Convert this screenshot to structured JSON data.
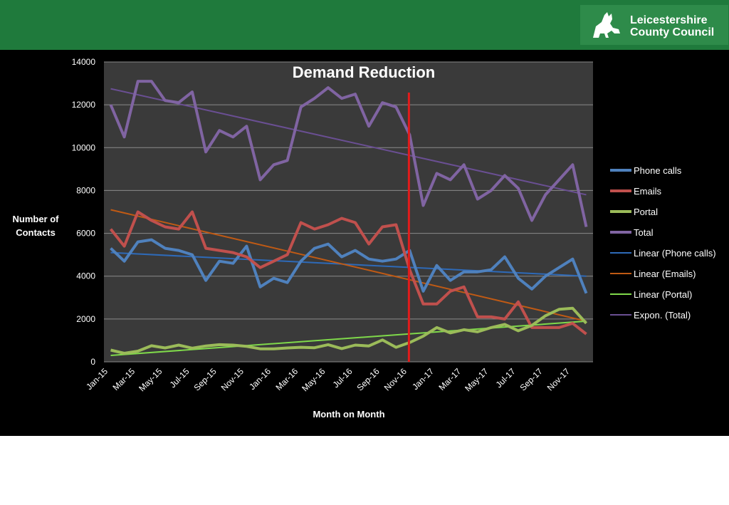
{
  "header": {
    "org_line1": "Leicestershire",
    "org_line2": "County Council",
    "logo_icon": "fox-logo-icon",
    "colors": {
      "bar": "#1f7a3c",
      "logo_bg": "#2e8b4a"
    }
  },
  "chart_data": {
    "type": "line",
    "title": "Demand Reduction",
    "xlabel": "Month on Month",
    "ylabel_lines": [
      "Number of",
      "Contacts"
    ],
    "ylim": [
      0,
      14000
    ],
    "yticks": [
      0,
      2000,
      4000,
      6000,
      8000,
      10000,
      12000,
      14000
    ],
    "ytick_labels": [
      "0",
      "2000",
      "4000",
      "6000",
      "8000",
      "10000",
      "12000",
      "14000"
    ],
    "grid": true,
    "legend_position": "right",
    "categories": [
      "Jan-15",
      "Feb-15",
      "Mar-15",
      "Apr-15",
      "May-15",
      "Jun-15",
      "Jul-15",
      "Aug-15",
      "Sep-15",
      "Oct-15",
      "Nov-15",
      "Dec-15",
      "Jan-16",
      "Feb-16",
      "Mar-16",
      "Apr-16",
      "May-16",
      "Jun-16",
      "Jul-16",
      "Aug-16",
      "Sep-16",
      "Oct-16",
      "Nov-16",
      "Dec-16",
      "Jan-17",
      "Feb-17",
      "Mar-17",
      "Apr-17",
      "May-17",
      "Jun-17",
      "Jul-17",
      "Aug-17",
      "Sep-17",
      "Oct-17",
      "Nov-17",
      "Dec-17"
    ],
    "xtick_labels": [
      "Jan-15",
      "Mar-15",
      "May-15",
      "Jul-15",
      "Sep-15",
      "Nov-15",
      "Jan-16",
      "Mar-16",
      "May-16",
      "Jul-16",
      "Sep-16",
      "Nov-16",
      "Jan-17",
      "Mar-17",
      "May-17",
      "Jul-17",
      "Sep-17",
      "Nov-17"
    ],
    "series": [
      {
        "name": "Phone calls",
        "color": "#4f81bd",
        "values": [
          5300,
          4700,
          5600,
          5700,
          5300,
          5200,
          5000,
          3800,
          4700,
          4600,
          5400,
          3500,
          3900,
          3700,
          4700,
          5300,
          5500,
          4900,
          5200,
          4800,
          4700,
          4800,
          5200,
          3300,
          4500,
          3800,
          4200,
          4200,
          4300,
          4900,
          3900,
          3400,
          4000,
          4400,
          4800,
          3200
        ]
      },
      {
        "name": "Emails",
        "color": "#c0504d",
        "values": [
          6200,
          5400,
          7000,
          6600,
          6300,
          6200,
          7000,
          5300,
          5200,
          5100,
          4900,
          4400,
          4700,
          5000,
          6500,
          6200,
          6400,
          6700,
          6500,
          5500,
          6300,
          6400,
          4300,
          2700,
          2700,
          3300,
          3500,
          2100,
          2100,
          2000,
          2800,
          1600,
          1600,
          1600,
          1800,
          1300
        ]
      },
      {
        "name": "Portal",
        "color": "#9bbb59",
        "values": [
          550,
          400,
          500,
          750,
          650,
          780,
          640,
          740,
          800,
          780,
          720,
          610,
          610,
          650,
          680,
          660,
          800,
          620,
          780,
          740,
          1020,
          680,
          900,
          1200,
          1600,
          1350,
          1500,
          1400,
          1600,
          1750,
          1450,
          1700,
          2150,
          2450,
          2500,
          1800
        ]
      },
      {
        "name": "Total",
        "color": "#8064a2",
        "values": [
          12000,
          10500,
          13100,
          13100,
          12200,
          12100,
          12600,
          9800,
          10800,
          10500,
          11000,
          8500,
          9200,
          9400,
          11900,
          12300,
          12800,
          12300,
          12500,
          11000,
          12100,
          11900,
          10600,
          7300,
          8800,
          8500,
          9200,
          7600,
          8000,
          8700,
          8100,
          6600,
          7800,
          8500,
          9200,
          6300
        ]
      }
    ],
    "trendlines": [
      {
        "name": "Linear (Phone calls)",
        "color": "#2e6ab8",
        "start": 5100,
        "end": 4000
      },
      {
        "name": "Linear (Emails)",
        "color": "#c05a14",
        "start": 7100,
        "end": 1900
      },
      {
        "name": "Linear (Portal)",
        "color": "#7fd94a",
        "start": 300,
        "end": 1900
      },
      {
        "name": "Expon. (Total)",
        "color": "#6a4f93",
        "start": 12750,
        "end": 7800
      }
    ],
    "marker_line": {
      "category": "Nov-16",
      "color": "#e21b1b"
    }
  }
}
